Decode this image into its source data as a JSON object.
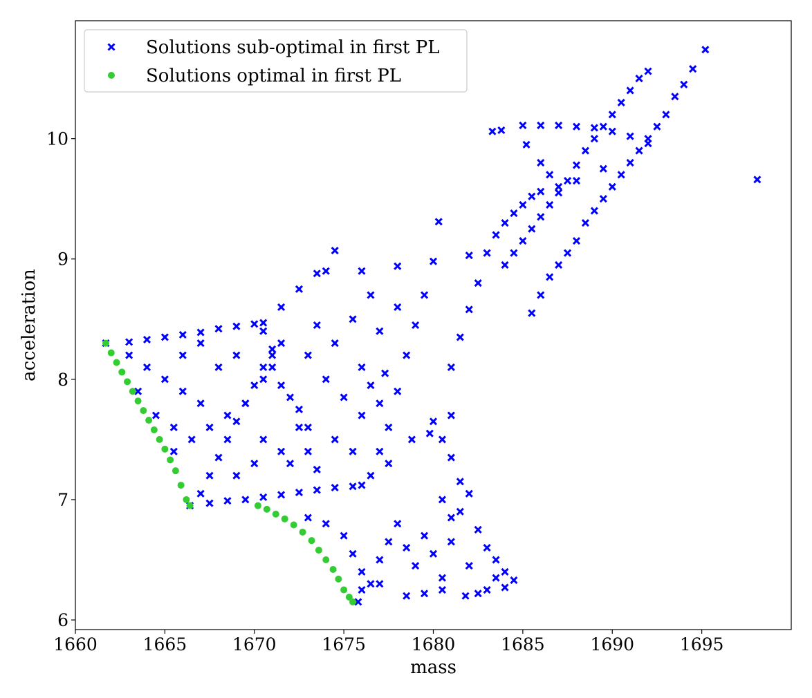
{
  "chart_data": {
    "type": "scatter",
    "xlabel": "mass",
    "ylabel": "acceleration",
    "xlim": [
      1660,
      1700
    ],
    "ylim": [
      5.92,
      10.98
    ],
    "xticks": [
      1660,
      1665,
      1670,
      1675,
      1680,
      1685,
      1690,
      1695
    ],
    "yticks": [
      6,
      7,
      8,
      9,
      10
    ],
    "grid": false,
    "legend_position": "top-left",
    "series": [
      {
        "name": "Solutions sub-optimal in first PL",
        "marker": "x",
        "color": "#0000ff",
        "points": [
          [
            1661.7,
            8.3
          ],
          [
            1663.0,
            8.31
          ],
          [
            1664.0,
            8.33
          ],
          [
            1665.0,
            8.35
          ],
          [
            1666.0,
            8.37
          ],
          [
            1667.0,
            8.39
          ],
          [
            1668.0,
            8.42
          ],
          [
            1669.0,
            8.44
          ],
          [
            1670.0,
            8.46
          ],
          [
            1670.5,
            8.47
          ],
          [
            1663.0,
            8.2
          ],
          [
            1664.0,
            8.1
          ],
          [
            1665.0,
            8.0
          ],
          [
            1666.0,
            7.9
          ],
          [
            1667.0,
            7.8
          ],
          [
            1668.0,
            8.1
          ],
          [
            1669.0,
            8.2
          ],
          [
            1663.5,
            7.9
          ],
          [
            1664.5,
            7.7
          ],
          [
            1665.5,
            7.6
          ],
          [
            1666.5,
            7.5
          ],
          [
            1667.5,
            7.6
          ],
          [
            1668.5,
            7.7
          ],
          [
            1669.5,
            7.8
          ],
          [
            1670.5,
            8.0
          ],
          [
            1671.0,
            8.2
          ],
          [
            1671.5,
            8.3
          ],
          [
            1666.0,
            8.2
          ],
          [
            1667.0,
            8.3
          ],
          [
            1665.5,
            7.4
          ],
          [
            1670.5,
            8.4
          ],
          [
            1671.0,
            8.1
          ],
          [
            1671.5,
            7.95
          ],
          [
            1672.0,
            7.85
          ],
          [
            1672.5,
            7.75
          ],
          [
            1673.0,
            7.6
          ],
          [
            1671.5,
            8.6
          ],
          [
            1672.5,
            8.75
          ],
          [
            1673.5,
            8.88
          ],
          [
            1674.5,
            9.07
          ],
          [
            1666.4,
            6.95
          ],
          [
            1667.0,
            7.05
          ],
          [
            1667.5,
            7.2
          ],
          [
            1668.0,
            7.35
          ],
          [
            1668.5,
            7.5
          ],
          [
            1669.0,
            7.65
          ],
          [
            1669.5,
            7.8
          ],
          [
            1670.0,
            7.95
          ],
          [
            1670.5,
            8.1
          ],
          [
            1671.0,
            8.25
          ],
          [
            1667.5,
            6.97
          ],
          [
            1668.5,
            6.99
          ],
          [
            1669.5,
            7.0
          ],
          [
            1670.5,
            7.02
          ],
          [
            1671.5,
            7.04
          ],
          [
            1672.5,
            7.06
          ],
          [
            1673.5,
            7.08
          ],
          [
            1674.5,
            7.1
          ],
          [
            1675.5,
            7.11
          ],
          [
            1676.0,
            7.12
          ],
          [
            1669.0,
            7.2
          ],
          [
            1670.0,
            7.3
          ],
          [
            1670.5,
            7.5
          ],
          [
            1671.5,
            7.4
          ],
          [
            1672.0,
            7.3
          ],
          [
            1672.5,
            7.6
          ],
          [
            1673.0,
            7.4
          ],
          [
            1673.5,
            7.25
          ],
          [
            1674.5,
            7.5
          ],
          [
            1675.5,
            7.4
          ],
          [
            1676.0,
            7.7
          ],
          [
            1675.0,
            7.85
          ],
          [
            1674.0,
            8.0
          ],
          [
            1673.0,
            8.2
          ],
          [
            1674.5,
            8.3
          ],
          [
            1676.0,
            8.1
          ],
          [
            1676.5,
            7.95
          ],
          [
            1677.0,
            7.8
          ],
          [
            1675.5,
            8.5
          ],
          [
            1677.0,
            8.4
          ],
          [
            1674.0,
            8.9
          ],
          [
            1676.0,
            8.9
          ],
          [
            1678.0,
            8.94
          ],
          [
            1680.0,
            8.98
          ],
          [
            1682.0,
            9.03
          ],
          [
            1677.5,
            7.6
          ],
          [
            1678.0,
            7.9
          ],
          [
            1678.5,
            8.2
          ],
          [
            1679.0,
            8.45
          ],
          [
            1679.5,
            8.7
          ],
          [
            1676.5,
            7.2
          ],
          [
            1677.0,
            7.4
          ],
          [
            1677.5,
            7.3
          ],
          [
            1678.0,
            8.6
          ],
          [
            1677.3,
            8.05
          ],
          [
            1673.5,
            8.45
          ],
          [
            1676.5,
            8.7
          ],
          [
            1678.8,
            7.5
          ],
          [
            1679.8,
            7.55
          ],
          [
            1680.3,
            9.31
          ],
          [
            1681.0,
            7.7
          ],
          [
            1680.5,
            7.5
          ],
          [
            1681.0,
            7.35
          ],
          [
            1681.5,
            7.15
          ],
          [
            1682.0,
            7.05
          ],
          [
            1680.0,
            7.65
          ],
          [
            1681.0,
            8.1
          ],
          [
            1681.5,
            8.35
          ],
          [
            1682.0,
            8.58
          ],
          [
            1682.5,
            8.8
          ],
          [
            1683.0,
            9.05
          ],
          [
            1683.5,
            9.2
          ],
          [
            1684.0,
            9.3
          ],
          [
            1684.5,
            9.38
          ],
          [
            1685.0,
            9.45
          ],
          [
            1685.5,
            9.52
          ],
          [
            1686.0,
            9.56
          ],
          [
            1687.0,
            9.6
          ],
          [
            1688.0,
            9.65
          ],
          [
            1684.0,
            8.95
          ],
          [
            1684.5,
            9.05
          ],
          [
            1685.0,
            9.15
          ],
          [
            1685.5,
            9.25
          ],
          [
            1686.0,
            9.35
          ],
          [
            1686.5,
            9.45
          ],
          [
            1687.0,
            9.55
          ],
          [
            1687.5,
            9.65
          ],
          [
            1688.0,
            9.78
          ],
          [
            1688.5,
            9.9
          ],
          [
            1689.0,
            10.0
          ],
          [
            1689.5,
            10.1
          ],
          [
            1690.0,
            10.2
          ],
          [
            1690.5,
            10.3
          ],
          [
            1691.0,
            10.4
          ],
          [
            1691.5,
            10.5
          ],
          [
            1692.0,
            10.56
          ],
          [
            1685.5,
            8.55
          ],
          [
            1686.0,
            8.7
          ],
          [
            1686.5,
            8.85
          ],
          [
            1687.0,
            8.95
          ],
          [
            1687.5,
            9.05
          ],
          [
            1688.0,
            9.15
          ],
          [
            1688.5,
            9.3
          ],
          [
            1689.0,
            9.4
          ],
          [
            1689.5,
            9.5
          ],
          [
            1690.0,
            9.6
          ],
          [
            1690.5,
            9.7
          ],
          [
            1691.0,
            9.8
          ],
          [
            1691.5,
            9.9
          ],
          [
            1692.0,
            10.0
          ],
          [
            1692.5,
            10.1
          ],
          [
            1693.0,
            10.2
          ],
          [
            1693.5,
            10.35
          ],
          [
            1694.0,
            10.45
          ],
          [
            1694.5,
            10.58
          ],
          [
            1695.2,
            10.74
          ],
          [
            1683.3,
            10.06
          ],
          [
            1683.8,
            10.07
          ],
          [
            1685.0,
            10.11
          ],
          [
            1686.0,
            10.11
          ],
          [
            1687.0,
            10.11
          ],
          [
            1688.0,
            10.1
          ],
          [
            1689.0,
            10.09
          ],
          [
            1690.0,
            10.06
          ],
          [
            1691.0,
            10.02
          ],
          [
            1692.0,
            9.96
          ],
          [
            1685.2,
            9.95
          ],
          [
            1686.0,
            9.8
          ],
          [
            1686.5,
            9.7
          ],
          [
            1689.5,
            9.75
          ],
          [
            1698.1,
            9.66
          ],
          [
            1681.8,
            6.2
          ],
          [
            1682.5,
            6.22
          ],
          [
            1683.0,
            6.25
          ],
          [
            1684.0,
            6.27
          ],
          [
            1684.5,
            6.33
          ],
          [
            1680.5,
            7.0
          ],
          [
            1681.5,
            6.9
          ],
          [
            1682.5,
            6.75
          ],
          [
            1683.0,
            6.6
          ],
          [
            1683.5,
            6.5
          ],
          [
            1684.0,
            6.4
          ],
          [
            1673.0,
            6.85
          ],
          [
            1674.0,
            6.8
          ],
          [
            1675.0,
            6.7
          ],
          [
            1675.5,
            6.55
          ],
          [
            1676.0,
            6.4
          ],
          [
            1676.5,
            6.3
          ],
          [
            1677.0,
            6.5
          ],
          [
            1677.5,
            6.65
          ],
          [
            1678.0,
            6.8
          ],
          [
            1678.5,
            6.6
          ],
          [
            1679.0,
            6.45
          ],
          [
            1679.5,
            6.7
          ],
          [
            1680.0,
            6.55
          ],
          [
            1680.5,
            6.35
          ],
          [
            1681.0,
            6.85
          ],
          [
            1682.0,
            6.45
          ],
          [
            1678.5,
            6.2
          ],
          [
            1679.5,
            6.22
          ],
          [
            1680.5,
            6.25
          ],
          [
            1676.0,
            6.25
          ],
          [
            1675.8,
            6.15
          ],
          [
            1677.0,
            6.3
          ],
          [
            1681.0,
            6.65
          ],
          [
            1683.5,
            6.35
          ]
        ]
      },
      {
        "name": "Solutions optimal in first PL",
        "marker": "o",
        "color": "#33cc33",
        "points": [
          [
            1661.7,
            8.3
          ],
          [
            1662.0,
            8.22
          ],
          [
            1662.3,
            8.14
          ],
          [
            1662.6,
            8.06
          ],
          [
            1662.9,
            7.98
          ],
          [
            1663.2,
            7.9
          ],
          [
            1663.5,
            7.82
          ],
          [
            1663.8,
            7.74
          ],
          [
            1664.1,
            7.66
          ],
          [
            1664.4,
            7.58
          ],
          [
            1664.7,
            7.5
          ],
          [
            1665.0,
            7.42
          ],
          [
            1665.3,
            7.33
          ],
          [
            1665.6,
            7.24
          ],
          [
            1665.9,
            7.12
          ],
          [
            1666.2,
            7.0
          ],
          [
            1666.4,
            6.95
          ],
          [
            1670.2,
            6.95
          ],
          [
            1670.7,
            6.92
          ],
          [
            1671.2,
            6.88
          ],
          [
            1671.7,
            6.84
          ],
          [
            1672.2,
            6.79
          ],
          [
            1672.7,
            6.73
          ],
          [
            1673.2,
            6.66
          ],
          [
            1673.6,
            6.58
          ],
          [
            1674.0,
            6.5
          ],
          [
            1674.4,
            6.42
          ],
          [
            1674.7,
            6.34
          ],
          [
            1675.0,
            6.25
          ],
          [
            1675.3,
            6.19
          ],
          [
            1675.5,
            6.15
          ]
        ]
      }
    ]
  }
}
